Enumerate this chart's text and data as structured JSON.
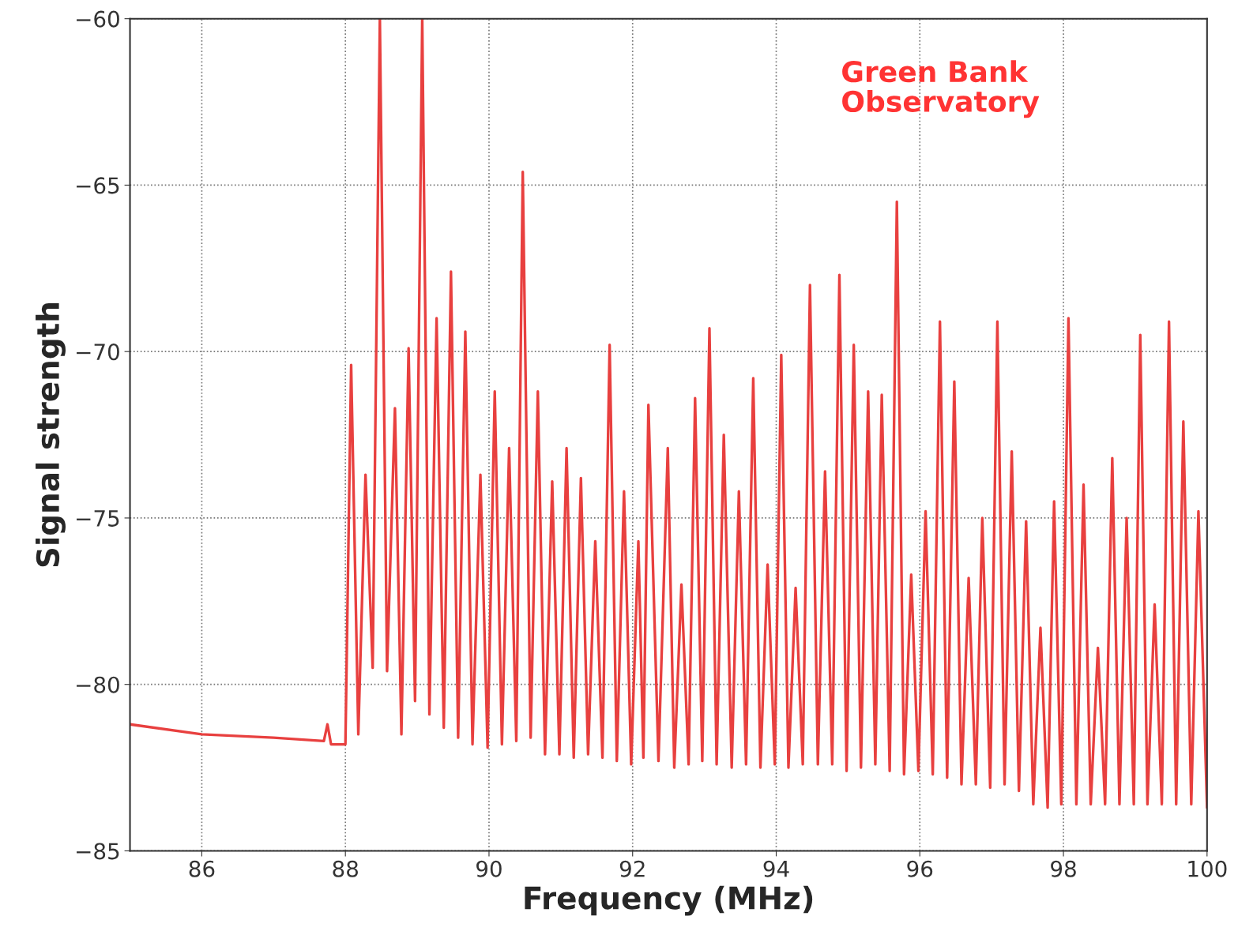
{
  "chart_data": {
    "type": "line",
    "xlabel": "Frequency (MHz)",
    "ylabel": "Signal strength",
    "annotations": [
      "Green Bank\nObservatory"
    ],
    "xlim": [
      85,
      100
    ],
    "xticks": [
      86,
      88,
      90,
      92,
      94,
      96,
      98,
      100
    ],
    "ylim": [
      -85,
      -60
    ],
    "yticks": [
      {
        "value": -85,
        "label": "−85"
      },
      {
        "value": -80,
        "label": "−80"
      },
      {
        "value": -75,
        "label": "−75"
      },
      {
        "value": -70,
        "label": "−70"
      },
      {
        "value": -65,
        "label": "−65"
      },
      {
        "value": -60,
        "label": "−60"
      }
    ],
    "grid": true,
    "line_style": "solid",
    "marker": "none",
    "series": [
      {
        "color": "#e8403f",
        "x": [
          85.0,
          86.0,
          87.0,
          87.7,
          87.75,
          87.8,
          88.0,
          88.08,
          88.18,
          88.28,
          88.38,
          88.48,
          88.58,
          88.69,
          88.78,
          88.88,
          88.97,
          89.07,
          89.17,
          89.27,
          89.37,
          89.47,
          89.57,
          89.67,
          89.77,
          89.88,
          89.98,
          90.08,
          90.18,
          90.28,
          90.38,
          90.47,
          90.58,
          90.68,
          90.78,
          90.88,
          90.98,
          91.08,
          91.18,
          91.28,
          91.38,
          91.48,
          91.58,
          91.68,
          91.78,
          91.88,
          91.98,
          92.08,
          92.15,
          92.22,
          92.36,
          92.49,
          92.58,
          92.68,
          92.78,
          92.87,
          92.97,
          93.07,
          93.17,
          93.27,
          93.38,
          93.48,
          93.58,
          93.68,
          93.78,
          93.88,
          93.98,
          94.07,
          94.17,
          94.27,
          94.37,
          94.47,
          94.58,
          94.68,
          94.78,
          94.88,
          94.98,
          95.08,
          95.18,
          95.28,
          95.38,
          95.47,
          95.58,
          95.68,
          95.78,
          95.88,
          95.98,
          96.08,
          96.18,
          96.28,
          96.38,
          96.48,
          96.58,
          96.68,
          96.78,
          96.87,
          96.98,
          97.08,
          97.18,
          97.28,
          97.38,
          97.48,
          97.58,
          97.68,
          97.78,
          97.87,
          97.97,
          98.07,
          98.18,
          98.28,
          98.38,
          98.48,
          98.58,
          98.68,
          98.78,
          98.88,
          98.98,
          99.07,
          99.17,
          99.27,
          99.37,
          99.47,
          99.57,
          99.67,
          99.78,
          99.88,
          100.0
        ],
        "values": [
          -81.2,
          -81.5,
          -81.6,
          -81.7,
          -81.2,
          -81.8,
          -81.8,
          -70.4,
          -81.5,
          -73.7,
          -79.5,
          -60,
          -79.6,
          -71.7,
          -81.5,
          -69.9,
          -80.5,
          -60,
          -80.9,
          -69.0,
          -81.3,
          -67.6,
          -81.6,
          -69.4,
          -81.8,
          -73.7,
          -81.9,
          -71.2,
          -81.8,
          -72.9,
          -81.7,
          -64.6,
          -81.6,
          -71.2,
          -82.1,
          -73.9,
          -82.1,
          -72.9,
          -82.2,
          -73.8,
          -82.1,
          -75.7,
          -82.2,
          -69.8,
          -82.3,
          -74.2,
          -82.4,
          -75.7,
          -82.2,
          -71.6,
          -82.3,
          -72.9,
          -82.5,
          -77.0,
          -82.4,
          -71.4,
          -82.3,
          -69.3,
          -82.4,
          -72.5,
          -82.5,
          -74.2,
          -82.4,
          -70.8,
          -82.5,
          -76.4,
          -82.4,
          -70.1,
          -82.5,
          -77.1,
          -82.4,
          -68.0,
          -82.4,
          -73.6,
          -82.4,
          -67.7,
          -82.6,
          -69.8,
          -82.5,
          -71.2,
          -82.4,
          -71.3,
          -82.6,
          -65.5,
          -82.7,
          -76.7,
          -82.6,
          -74.8,
          -82.7,
          -69.1,
          -82.8,
          -70.9,
          -83.0,
          -76.8,
          -83.0,
          -75.0,
          -83.1,
          -69.1,
          -83.0,
          -73.0,
          -83.2,
          -75.1,
          -83.6,
          -78.3,
          -83.7,
          -74.5,
          -83.6,
          -69.0,
          -83.6,
          -74.0,
          -83.6,
          -78.9,
          -83.6,
          -73.2,
          -83.6,
          -75.0,
          -83.6,
          -69.5,
          -83.6,
          -77.6,
          -83.6,
          -69.1,
          -83.6,
          -72.1,
          -83.6,
          -74.8,
          -83.7
        ]
      }
    ]
  }
}
